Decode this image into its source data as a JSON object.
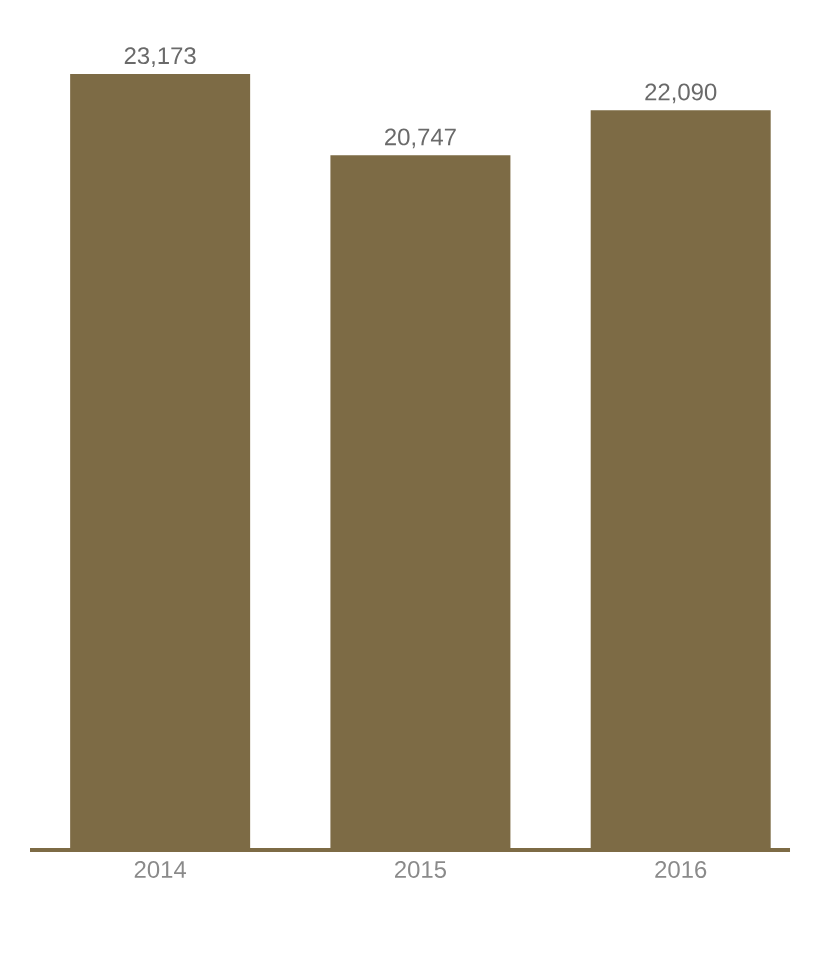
{
  "chart_data": {
    "type": "bar",
    "categories": [
      "2014",
      "2015",
      "2016"
    ],
    "values": [
      23173,
      20747,
      22090
    ],
    "value_labels": [
      "23,173",
      "20,747",
      "22,090"
    ],
    "color": "#7d6b45"
  }
}
